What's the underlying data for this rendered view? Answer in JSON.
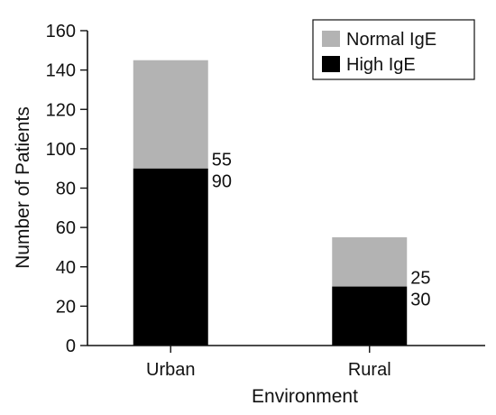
{
  "chart_data": {
    "type": "bar",
    "stacked": true,
    "categories": [
      "Urban",
      "Rural"
    ],
    "series": [
      {
        "name": "High IgE",
        "values": [
          90,
          30
        ],
        "color": "#000000"
      },
      {
        "name": "Normal IgE",
        "values": [
          55,
          25
        ],
        "color": "#b3b3b3"
      }
    ],
    "xlabel": "Environment",
    "ylabel": "Number of Patients",
    "ylim": [
      0,
      160
    ],
    "yticks": [
      0,
      20,
      40,
      60,
      80,
      100,
      120,
      140,
      160
    ],
    "ytick_labels": [
      "0",
      "20",
      "40",
      "60",
      "80",
      "100",
      "120",
      "140",
      "160"
    ],
    "grid": false,
    "legend": {
      "placement": "top-right",
      "entries": [
        "Normal IgE",
        "High IgE"
      ]
    }
  }
}
